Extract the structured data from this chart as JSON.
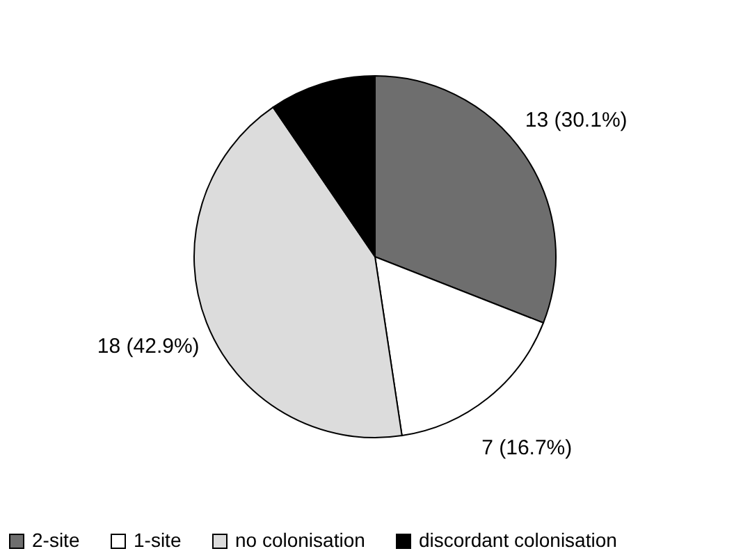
{
  "chart_data": {
    "type": "pie",
    "categories": [
      "2-site",
      "1-site",
      "no colonisation",
      "discordant colonisation"
    ],
    "values": [
      13,
      7,
      18,
      4
    ],
    "colors": [
      "#6e6e6e",
      "#ffffff",
      "#dcdcdc",
      "#000000"
    ],
    "value_labels": [
      "13 (30.1%)",
      "7 (16.7%)",
      "18 (42.9%)",
      null
    ],
    "legend": "bottom"
  }
}
